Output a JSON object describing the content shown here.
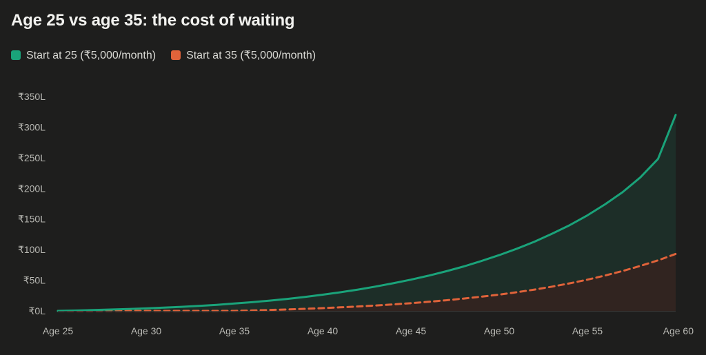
{
  "title": "Age 25 vs age 35: the cost of waiting",
  "legend": [
    {
      "label": "Start at 25 (₹5,000/month)",
      "color": "#1aa37a"
    },
    {
      "label": "Start at 35 (₹5,000/month)",
      "color": "#e0633a"
    }
  ],
  "chart_data": {
    "type": "area",
    "title": "Age 25 vs age 35: the cost of waiting",
    "xlabel": "",
    "ylabel": "",
    "x": [
      25,
      26,
      27,
      28,
      29,
      30,
      31,
      32,
      33,
      34,
      35,
      36,
      37,
      38,
      39,
      40,
      41,
      42,
      43,
      44,
      45,
      46,
      47,
      48,
      49,
      50,
      51,
      52,
      53,
      54,
      55,
      56,
      57,
      58,
      59,
      60
    ],
    "xlim": [
      25,
      60
    ],
    "ylim": [
      0,
      350
    ],
    "x_ticks": [
      25,
      30,
      35,
      40,
      45,
      50,
      55,
      60
    ],
    "x_tick_labels": [
      "Age 25",
      "Age 30",
      "Age 35",
      "Age 40",
      "Age 45",
      "Age 50",
      "Age 55",
      "Age 60"
    ],
    "y_ticks": [
      0,
      50,
      100,
      150,
      200,
      250,
      300,
      350
    ],
    "y_tick_labels": [
      "₹0L",
      "₹50L",
      "₹100L",
      "₹150L",
      "₹200L",
      "₹250L",
      "₹300L",
      "₹350L"
    ],
    "grid": false,
    "legend_position": "top-left",
    "series": [
      {
        "name": "Start at 25 (₹5,000/month)",
        "color": "#1aa37a",
        "style": "solid",
        "values": [
          0,
          0.6,
          1.4,
          2.2,
          3.0,
          4.0,
          5.3,
          6.6,
          8.1,
          9.8,
          12.0,
          14.2,
          16.8,
          19.6,
          22.9,
          26.5,
          30.4,
          34.8,
          39.7,
          45.1,
          51.0,
          57.5,
          64.7,
          72.6,
          81.5,
          91.0,
          101.5,
          113.0,
          126.0,
          140.0,
          156.0,
          174.0,
          194.0,
          218.0,
          248.0,
          320.0
        ]
      },
      {
        "name": "Start at 35 (₹5,000/month)",
        "color": "#e0633a",
        "style": "dashed",
        "values": [
          0,
          0,
          0,
          0,
          0,
          0,
          0,
          0,
          0,
          0,
          0,
          0.7,
          1.5,
          2.4,
          3.4,
          4.5,
          5.8,
          7.2,
          8.8,
          10.6,
          12.6,
          14.8,
          17.3,
          20.1,
          23.2,
          26.6,
          30.5,
          34.8,
          39.6,
          45.0,
          51.0,
          57.7,
          65.2,
          73.5,
          82.5,
          93.0
        ]
      }
    ]
  }
}
